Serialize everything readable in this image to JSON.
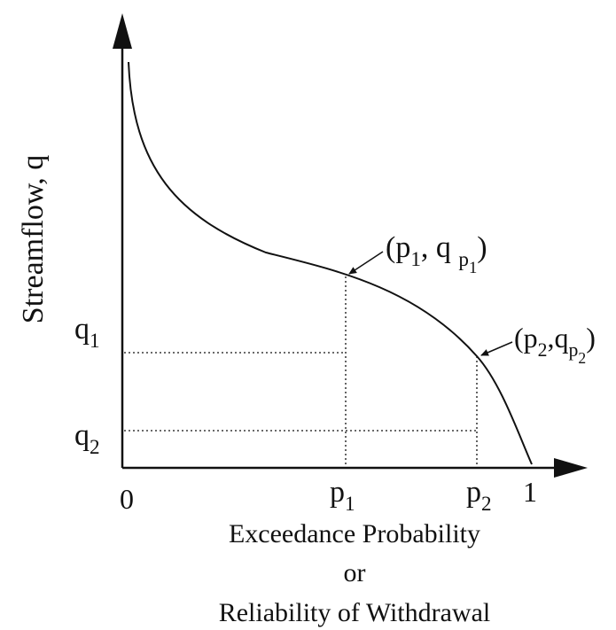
{
  "y_axis_label": "Streamflow, q",
  "x_axis_labels": {
    "origin": "0",
    "p1": [
      {
        "text": "p"
      },
      {
        "sub": "1"
      }
    ],
    "p2": [
      {
        "text": "p"
      },
      {
        "sub": "2"
      }
    ],
    "one": "1"
  },
  "y_axis_labels": {
    "q1": [
      {
        "text": "q"
      },
      {
        "sub": "1"
      }
    ],
    "q2": [
      {
        "text": "q"
      },
      {
        "sub": "2"
      }
    ]
  },
  "annotations": {
    "point1": [
      {
        "text": "(p"
      },
      {
        "sub": "1"
      },
      {
        "text": ", q "
      },
      {
        "sub": "p"
      },
      {
        "subsub": "1"
      },
      {
        "text": ")"
      }
    ],
    "point2": [
      {
        "text": "(p"
      },
      {
        "sub": "2"
      },
      {
        "text": ",q"
      },
      {
        "sub": "p"
      },
      {
        "subsub": "2"
      },
      {
        "text": ")"
      }
    ]
  },
  "x_axis_title": [
    "Exceedance Probability",
    "or",
    "Reliability of Withdrawal"
  ]
}
